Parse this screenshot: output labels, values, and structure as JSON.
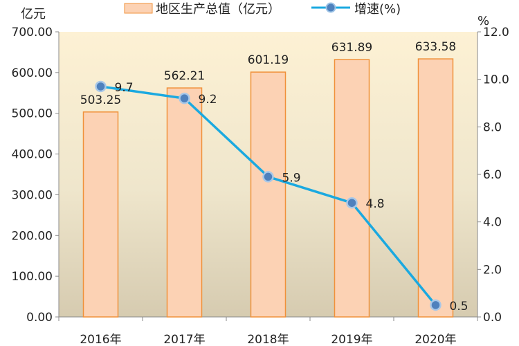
{
  "chart_data": {
    "type": "bar+line",
    "categories": [
      "2016年",
      "2017年",
      "2018年",
      "2019年",
      "2020年"
    ],
    "series": [
      {
        "name": "地区生产总值（亿元）",
        "type": "bar",
        "axis": "left",
        "values": [
          503.25,
          562.21,
          601.19,
          631.89,
          633.58
        ],
        "labels": [
          "503.25",
          "562.21",
          "601.19",
          "631.89",
          "633.58"
        ]
      },
      {
        "name": "增速(%)",
        "type": "line",
        "axis": "right",
        "values": [
          9.7,
          9.2,
          5.9,
          4.8,
          0.5
        ],
        "labels": [
          "9.7",
          "9.2",
          "5.9",
          "4.8",
          "0.5"
        ]
      }
    ],
    "y_left": {
      "unit": "亿元",
      "range": [
        0,
        700
      ],
      "ticks": [
        "0.00",
        "100.00",
        "200.00",
        "300.00",
        "400.00",
        "500.00",
        "600.00",
        "700.00"
      ]
    },
    "y_right": {
      "unit": "%",
      "range": [
        0,
        12
      ],
      "ticks": [
        "0.0",
        "2.0",
        "4.0",
        "6.0",
        "8.0",
        "10.0",
        "12.0"
      ]
    },
    "legend_position": "top",
    "grid": false,
    "colors": {
      "bar_fill": "#FCD2B4",
      "bar_stroke": "#F0913A",
      "line": "#1BA9E0",
      "marker": "#4F81BD",
      "bg_top": "#FDF1D4",
      "bg_bottom": "#D6CBB0"
    }
  }
}
